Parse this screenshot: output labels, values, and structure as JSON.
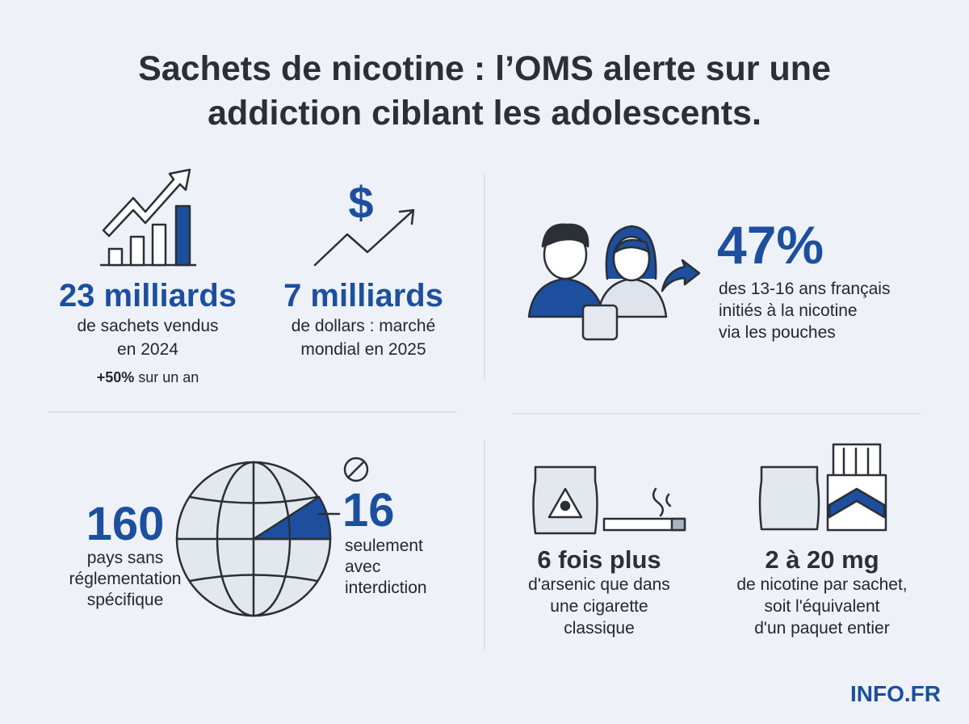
{
  "header": {
    "title_lines": [
      "Sachets de nicotine : l’OMS alerte sur une",
      "addiction ciblant les adolescents."
    ]
  },
  "stats": [
    {
      "value": "23 milliards",
      "lines": [
        "de sachets vendus",
        "en 2024"
      ],
      "note": {
        "bold": "+50%",
        "text": "sur un an"
      }
    },
    {
      "value": "7 milliards",
      "lines": [
        "de dollars : marché",
        "mondial en 2025"
      ]
    },
    {
      "value": "47%",
      "lines": [
        "des 13-16 ans français",
        "initiés à la nicotine",
        "via les pouches"
      ]
    },
    {
      "value": "160",
      "lines": [
        "pays sans",
        "réglementation",
        "spécifique"
      ]
    },
    {
      "value": "16",
      "lines": [
        "seulement",
        "avec",
        "interdiction"
      ]
    },
    {
      "value": "6 fois plus",
      "lines": [
        "d'arsenic que dans",
        "une cigarette",
        "classique"
      ]
    },
    {
      "value": "2 à 20 mg",
      "lines": [
        "de nicotine par sachet,",
        "soit l'équivalent",
        "d'un paquet entier"
      ]
    }
  ],
  "footer": {
    "brand": "INFO.FR"
  }
}
